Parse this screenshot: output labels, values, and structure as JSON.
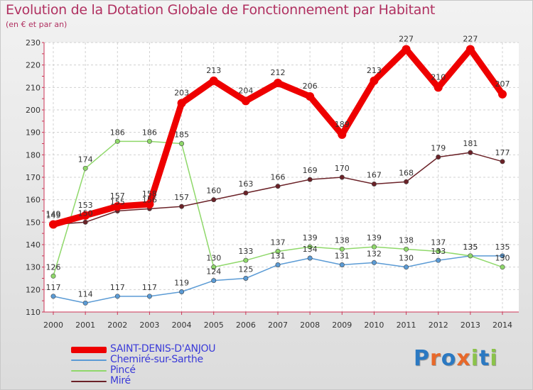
{
  "chart_data": {
    "type": "line",
    "title": "Evolution de la Dotation Globale de Fonctionnement par Habitant",
    "subtitle": "(en € et par an)",
    "xlabel": "",
    "ylabel": "",
    "ylim": [
      110,
      230
    ],
    "yticks": [
      110,
      120,
      130,
      140,
      150,
      160,
      170,
      180,
      190,
      200,
      210,
      220,
      230
    ],
    "grid": true,
    "legend_position": "bottom-left",
    "categories": [
      "2000",
      "2001",
      "2002",
      "2003",
      "2004",
      "2005",
      "2006",
      "2007",
      "2008",
      "2009",
      "2010",
      "2011",
      "2012",
      "2013",
      "2014"
    ],
    "series": [
      {
        "name": "Chemiré-sur-Sarthe",
        "color": "#5b9bd5",
        "values": [
          117,
          114,
          117,
          117,
          119,
          124,
          125,
          131,
          134,
          131,
          132,
          130,
          133,
          135,
          135
        ]
      },
      {
        "name": "Pincé",
        "color": "#8fd86a",
        "values": [
          126,
          174,
          186,
          186,
          185,
          130,
          133,
          137,
          139,
          138,
          139,
          138,
          137,
          135,
          130
        ]
      },
      {
        "name": "Miré",
        "color": "#6b2228",
        "values": [
          149,
          150,
          155,
          156,
          157,
          160,
          163,
          166,
          169,
          170,
          167,
          168,
          179,
          181,
          177
        ]
      },
      {
        "name": "SAINT-DENIS-D'ANJOU",
        "color": "#ee0000",
        "values": [
          149,
          153,
          157,
          158,
          203,
          213,
          204,
          212,
          206,
          189,
          213,
          227,
          210,
          227,
          207
        ]
      }
    ]
  },
  "legend": [
    {
      "label": "SAINT-DENIS-D'ANJOU",
      "color": "#ee0000",
      "text_color": "#3a3ad8"
    },
    {
      "label": "Chemiré-sur-Sarthe",
      "color": "#5b9bd5",
      "text_color": "#3a3ad8"
    },
    {
      "label": "Pincé",
      "color": "#8fd86a",
      "text_color": "#3a3ad8"
    },
    {
      "label": "Miré",
      "color": "#6b2228",
      "text_color": "#3a3ad8"
    }
  ],
  "logo": {
    "letters": [
      "P",
      "r",
      "o",
      "x",
      "i",
      "t",
      "i"
    ],
    "colors": [
      "#2b79c2",
      "#e8692a",
      "#2b79c2",
      "#e8692a",
      "#8bc34a",
      "#2b79c2",
      "#8bc34a"
    ]
  }
}
